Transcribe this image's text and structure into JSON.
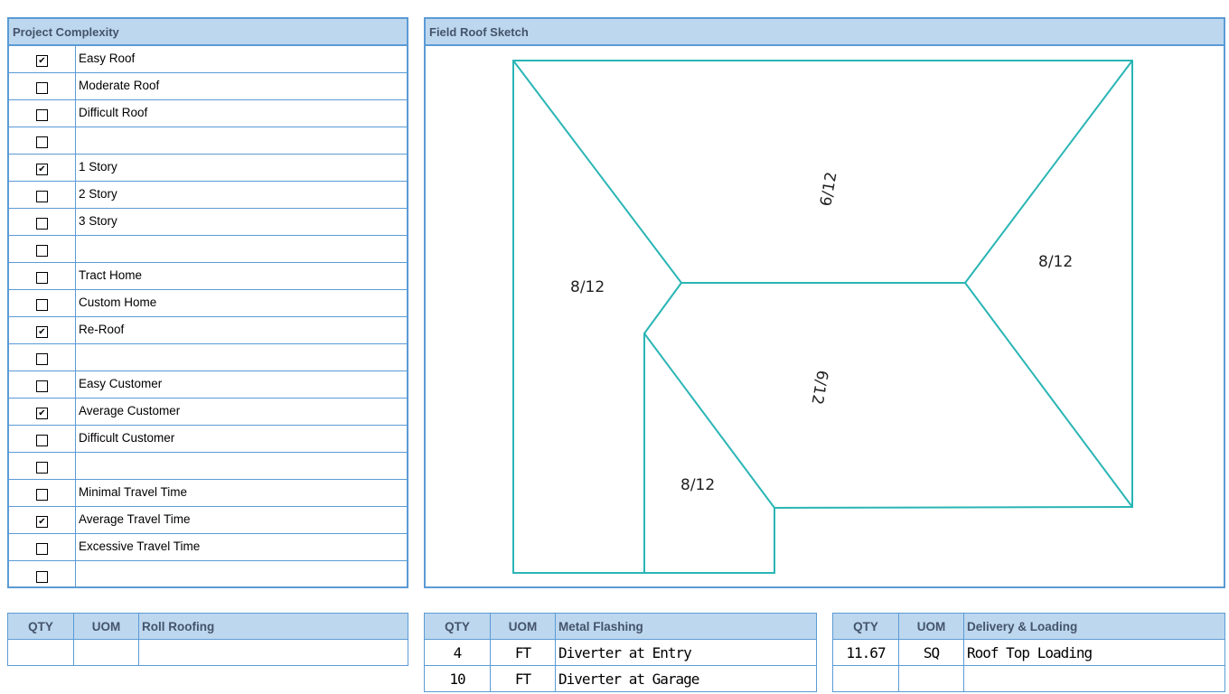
{
  "complexity": {
    "title": "Project Complexity",
    "items": [
      {
        "label": "Easy Roof",
        "checked": true
      },
      {
        "label": "Moderate Roof",
        "checked": false
      },
      {
        "label": "Difficult Roof",
        "checked": false
      },
      {
        "label": "",
        "checked": false
      },
      {
        "label": "1 Story",
        "checked": true
      },
      {
        "label": "2 Story",
        "checked": false
      },
      {
        "label": "3 Story",
        "checked": false
      },
      {
        "label": "",
        "checked": false
      },
      {
        "label": "Tract Home",
        "checked": false
      },
      {
        "label": "Custom Home",
        "checked": false
      },
      {
        "label": "Re-Roof",
        "checked": true
      },
      {
        "label": "",
        "checked": false
      },
      {
        "label": "Easy Customer",
        "checked": false
      },
      {
        "label": "Average Customer",
        "checked": true
      },
      {
        "label": "Difficult Customer",
        "checked": false
      },
      {
        "label": "",
        "checked": false
      },
      {
        "label": "Minimal Travel Time",
        "checked": false
      },
      {
        "label": "Average Travel Time",
        "checked": true
      },
      {
        "label": "Excessive Travel Time",
        "checked": false
      },
      {
        "label": "",
        "checked": false
      }
    ]
  },
  "sketch": {
    "title": "Field Roof Sketch",
    "line_color": "#2ab5b5",
    "pitches": [
      "8/12",
      "6/12",
      "8/12",
      "6/12",
      "8/12"
    ]
  },
  "tables": [
    {
      "headers": [
        "QTY",
        "UOM",
        "Roll Roofing"
      ],
      "rows": [
        [
          "",
          "",
          ""
        ]
      ]
    },
    {
      "headers": [
        "QTY",
        "UOM",
        "Metal Flashing"
      ],
      "rows": [
        [
          "4",
          "FT",
          "Diverter at Entry"
        ],
        [
          "10",
          "FT",
          "Diverter at Garage"
        ]
      ]
    },
    {
      "headers": [
        "QTY",
        "UOM",
        "Delivery & Loading"
      ],
      "rows": [
        [
          "11.67",
          "SQ",
          "Roof Top Loading"
        ],
        [
          "",
          "",
          ""
        ]
      ]
    }
  ]
}
